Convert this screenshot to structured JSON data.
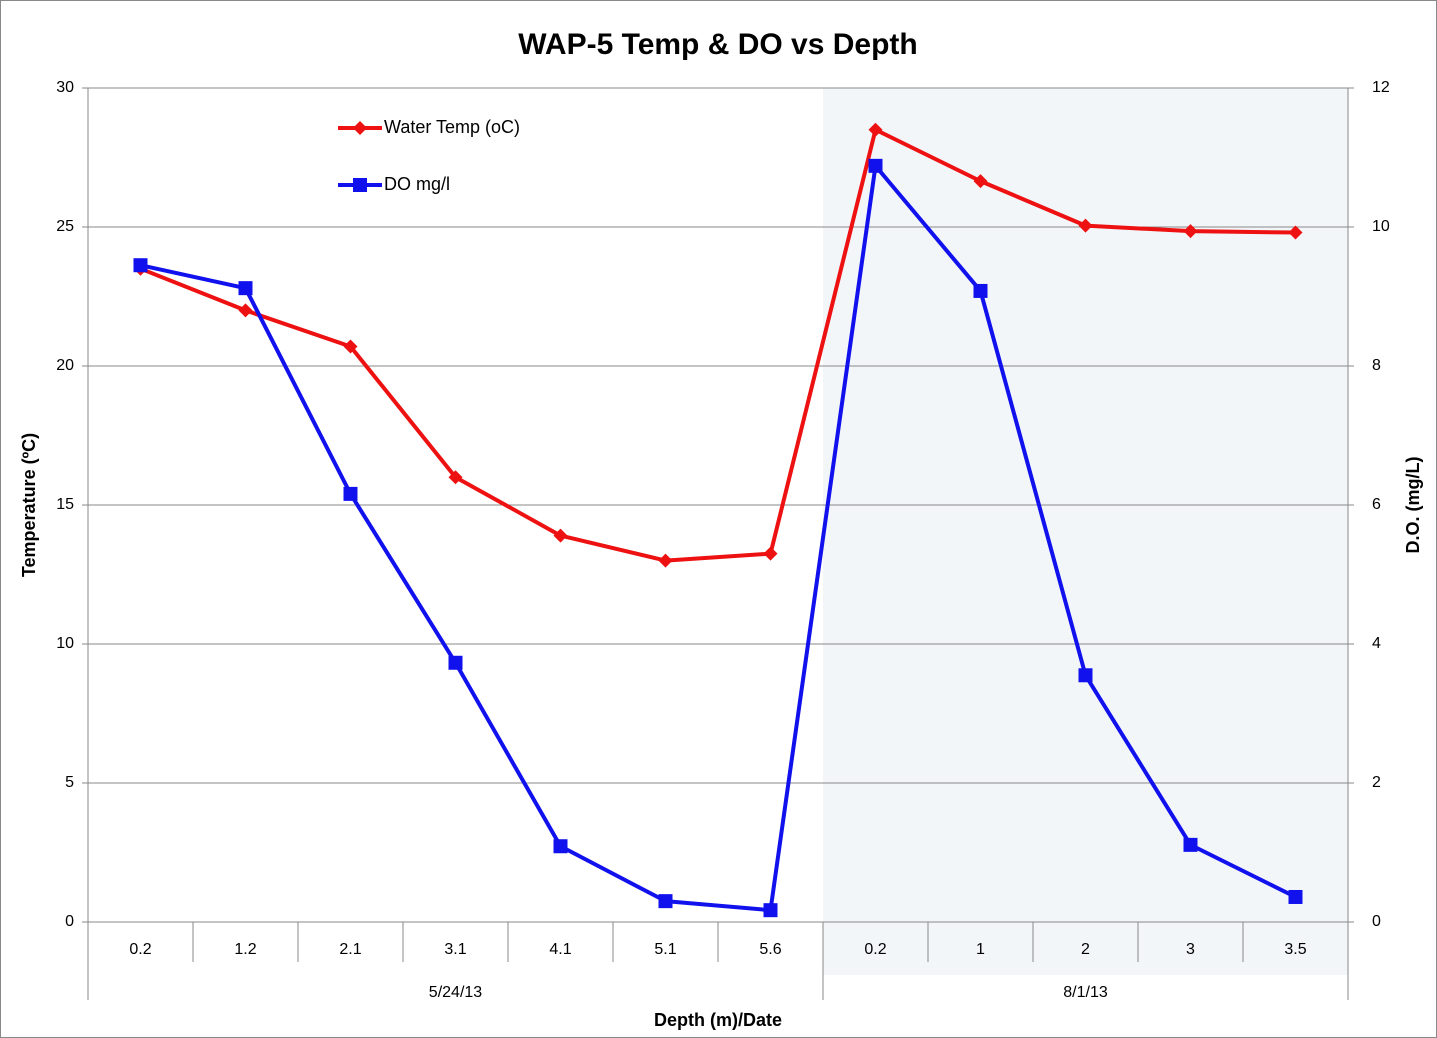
{
  "chart_data": {
    "type": "line",
    "title": "WAP-5 Temp & DO vs Depth",
    "x_label": "Depth (m)/Date",
    "y_label": "Temperature (ºC)",
    "y2_label": "D.O. (mg/L)",
    "categories": [
      "0.2",
      "1.2",
      "2.1",
      "3.1",
      "4.1",
      "5.1",
      "5.6",
      "0.2",
      "1",
      "2",
      "3",
      "3.5"
    ],
    "groups": [
      {
        "label": "5/24/13",
        "count": 7
      },
      {
        "label": "8/1/13",
        "count": 5
      }
    ],
    "shaded_group": 1,
    "series": [
      {
        "name": "Water Temp (oC)",
        "color": "#ee1111",
        "marker": "diamond",
        "values": [
          23.5,
          22.0,
          20.7,
          16.0,
          13.9,
          13.0,
          13.25,
          28.5,
          26.65,
          25.05,
          24.85,
          24.8
        ]
      },
      {
        "name": "DO mg/l",
        "color": "#1111ee",
        "marker": "square",
        "axis": "y2",
        "values": [
          9.45,
          9.12,
          6.16,
          3.73,
          1.09,
          0.3,
          0.17,
          10.88,
          9.08,
          3.55,
          1.11,
          0.36
        ]
      }
    ],
    "ylim": [
      0,
      30
    ],
    "yticks": [
      0,
      5,
      10,
      15,
      20,
      25,
      30
    ],
    "y2lim": [
      0,
      12
    ],
    "y2ticks": [
      0,
      2,
      4,
      6,
      8,
      10,
      12
    ],
    "grid": true
  }
}
